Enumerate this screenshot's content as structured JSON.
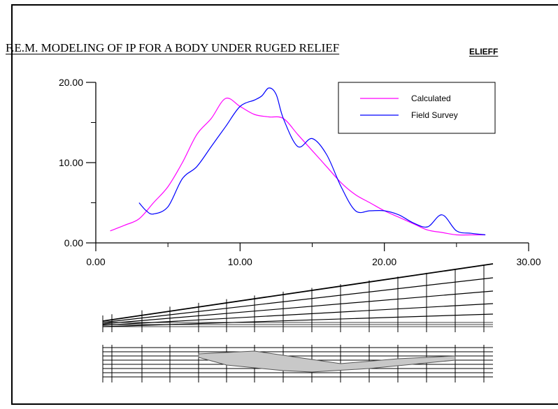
{
  "header": {
    "title": "F.E.M. MODELING OF IP FOR A BODY UNDER RUGED RELIEF",
    "subtitle": "ELIEFF"
  },
  "chart_data": {
    "type": "line",
    "title": "F.E.M. MODELING OF IP FOR A BODY UNDER RUGED RELIEF",
    "xlabel": "",
    "ylabel": "",
    "xlim": [
      0,
      30
    ],
    "ylim": [
      0,
      20
    ],
    "x_ticks": [
      0,
      10,
      20,
      30
    ],
    "x_tick_labels": [
      "0.00",
      "10.00",
      "20.00",
      "30.00"
    ],
    "y_ticks": [
      0,
      10,
      20
    ],
    "y_tick_labels": [
      "0.00",
      "10.00",
      "20.00"
    ],
    "grid": false,
    "legend_position": "top-right",
    "series": [
      {
        "name": "Calculated",
        "color": "#ff00ff",
        "points": [
          [
            1,
            1.5
          ],
          [
            2,
            2.2
          ],
          [
            3,
            3.0
          ],
          [
            4,
            5.0
          ],
          [
            5,
            7.0
          ],
          [
            6,
            10.0
          ],
          [
            7,
            13.5
          ],
          [
            8,
            15.5
          ],
          [
            9,
            18.0
          ],
          [
            10,
            17.0
          ],
          [
            11,
            16.0
          ],
          [
            12,
            15.7
          ],
          [
            13,
            15.5
          ],
          [
            14,
            13.5
          ],
          [
            15,
            11.5
          ],
          [
            16,
            9.5
          ],
          [
            17,
            7.5
          ],
          [
            18,
            6.0
          ],
          [
            19,
            5.0
          ],
          [
            20,
            4.0
          ],
          [
            21,
            3.2
          ],
          [
            22,
            2.4
          ],
          [
            23,
            1.6
          ],
          [
            24,
            1.3
          ],
          [
            25,
            1.0
          ],
          [
            26,
            1.0
          ],
          [
            27,
            1.0
          ]
        ]
      },
      {
        "name": "Field Survey",
        "color": "#0000ff",
        "points": [
          [
            3,
            5.0
          ],
          [
            3.5,
            4.0
          ],
          [
            4,
            3.6
          ],
          [
            5,
            4.5
          ],
          [
            6,
            8.0
          ],
          [
            7,
            9.5
          ],
          [
            8,
            12.0
          ],
          [
            9,
            14.5
          ],
          [
            10,
            17.0
          ],
          [
            11,
            17.8
          ],
          [
            11.5,
            18.3
          ],
          [
            12,
            19.3
          ],
          [
            12.5,
            18.5
          ],
          [
            13,
            15.5
          ],
          [
            14,
            12.0
          ],
          [
            15,
            13.0
          ],
          [
            16,
            11.0
          ],
          [
            17,
            7.0
          ],
          [
            18,
            4.0
          ],
          [
            19,
            4.0
          ],
          [
            20,
            4.0
          ],
          [
            21,
            3.5
          ],
          [
            22,
            2.5
          ],
          [
            23,
            2.0
          ],
          [
            24,
            3.5
          ],
          [
            25,
            1.5
          ],
          [
            26,
            1.2
          ],
          [
            27,
            1.0
          ]
        ]
      }
    ]
  },
  "mesh": {
    "surface_color": "#000000",
    "body_fill": "#c8c8c8"
  }
}
